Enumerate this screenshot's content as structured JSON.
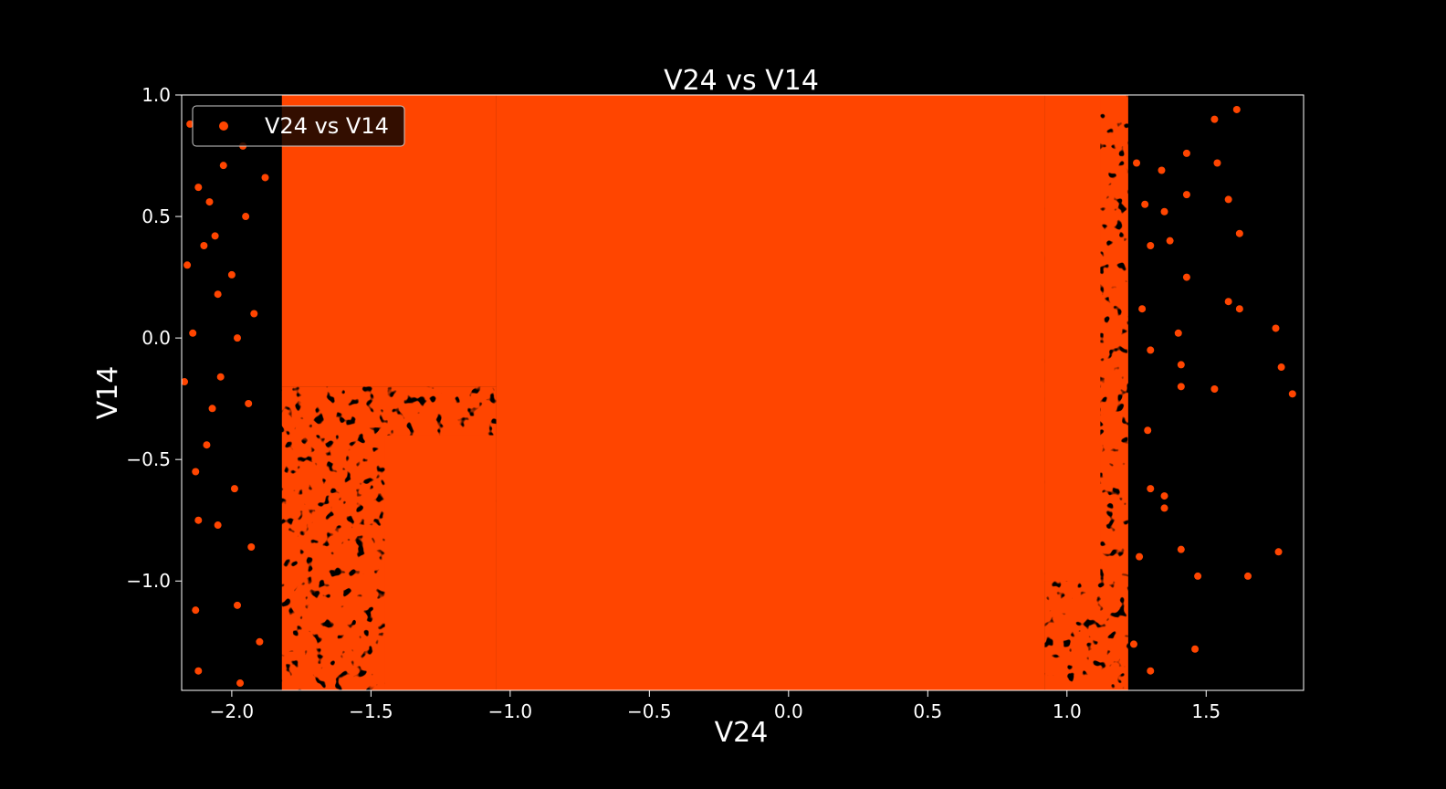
{
  "chart_data": {
    "type": "scatter",
    "title": "V24 vs V14",
    "xlabel": "V24",
    "ylabel": "V14",
    "xlim": [
      -2.18,
      1.85
    ],
    "ylim": [
      -1.45,
      1.0
    ],
    "xticks": [
      -2.0,
      -1.5,
      -1.0,
      -0.5,
      0.0,
      0.5,
      1.0,
      1.5
    ],
    "xtick_labels": [
      "−2.0",
      "−1.5",
      "−1.0",
      "−0.5",
      "0.0",
      "0.5",
      "1.0",
      "1.5"
    ],
    "yticks": [
      1.0,
      0.5,
      0.0,
      -0.5,
      -1.0
    ],
    "ytick_labels": [
      "1.0",
      "0.5",
      "0.0",
      "−0.5",
      "−1.0"
    ],
    "grid": false,
    "legend_position": "upper-left",
    "series": [
      {
        "name": "V24 vs V14",
        "color": "#ff4500",
        "dense_region": {
          "x": [
            -1.05,
            0.92
          ],
          "y": [
            -1.45,
            1.0
          ]
        },
        "points": [
          [
            -2.15,
            0.88
          ],
          [
            -2.12,
            0.62
          ],
          [
            -2.16,
            0.3
          ],
          [
            -2.14,
            0.02
          ],
          [
            -2.17,
            -0.18
          ],
          [
            -2.13,
            -0.55
          ],
          [
            -2.12,
            -0.75
          ],
          [
            -2.13,
            -1.12
          ],
          [
            -2.12,
            -1.37
          ],
          [
            -2.08,
            0.56
          ],
          [
            -2.06,
            0.42
          ],
          [
            -2.05,
            0.18
          ],
          [
            -2.07,
            -0.29
          ],
          [
            -2.05,
            -0.77
          ],
          [
            -2.03,
            0.71
          ],
          [
            -2.0,
            0.26
          ],
          [
            -1.98,
            0.0
          ],
          [
            -1.99,
            -0.62
          ],
          [
            -1.98,
            -1.1
          ],
          [
            -1.97,
            -1.42
          ],
          [
            -1.95,
            0.5
          ],
          [
            -1.94,
            -0.27
          ],
          [
            -1.93,
            -0.86
          ],
          [
            -1.92,
            0.1
          ],
          [
            -2.09,
            -0.44
          ],
          [
            -1.96,
            0.79
          ],
          [
            -2.04,
            -0.16
          ],
          [
            -2.1,
            0.38
          ],
          [
            -1.9,
            -1.25
          ],
          [
            -1.88,
            0.66
          ],
          [
            1.25,
            0.72
          ],
          [
            1.28,
            0.55
          ],
          [
            1.3,
            0.38
          ],
          [
            1.27,
            0.12
          ],
          [
            1.3,
            -0.05
          ],
          [
            1.29,
            -0.38
          ],
          [
            1.3,
            -0.62
          ],
          [
            1.26,
            -0.9
          ],
          [
            1.24,
            -1.26
          ],
          [
            1.3,
            -1.37
          ],
          [
            1.34,
            0.69
          ],
          [
            1.35,
            0.52
          ],
          [
            1.37,
            0.4
          ],
          [
            1.4,
            0.02
          ],
          [
            1.41,
            -0.11
          ],
          [
            1.41,
            -0.2
          ],
          [
            1.35,
            -0.65
          ],
          [
            1.35,
            -0.7
          ],
          [
            1.41,
            -0.87
          ],
          [
            1.46,
            -1.28
          ],
          [
            1.43,
            0.76
          ],
          [
            1.43,
            0.59
          ],
          [
            1.43,
            0.25
          ],
          [
            1.47,
            -0.98
          ],
          [
            1.53,
            0.9
          ],
          [
            1.54,
            0.72
          ],
          [
            1.53,
            -0.21
          ],
          [
            1.58,
            0.57
          ],
          [
            1.58,
            0.15
          ],
          [
            1.61,
            0.94
          ],
          [
            1.62,
            0.12
          ],
          [
            1.62,
            0.43
          ],
          [
            1.65,
            -0.98
          ],
          [
            1.75,
            0.04
          ],
          [
            1.76,
            -0.88
          ],
          [
            1.77,
            -0.12
          ],
          [
            1.81,
            -0.23
          ]
        ]
      }
    ]
  }
}
